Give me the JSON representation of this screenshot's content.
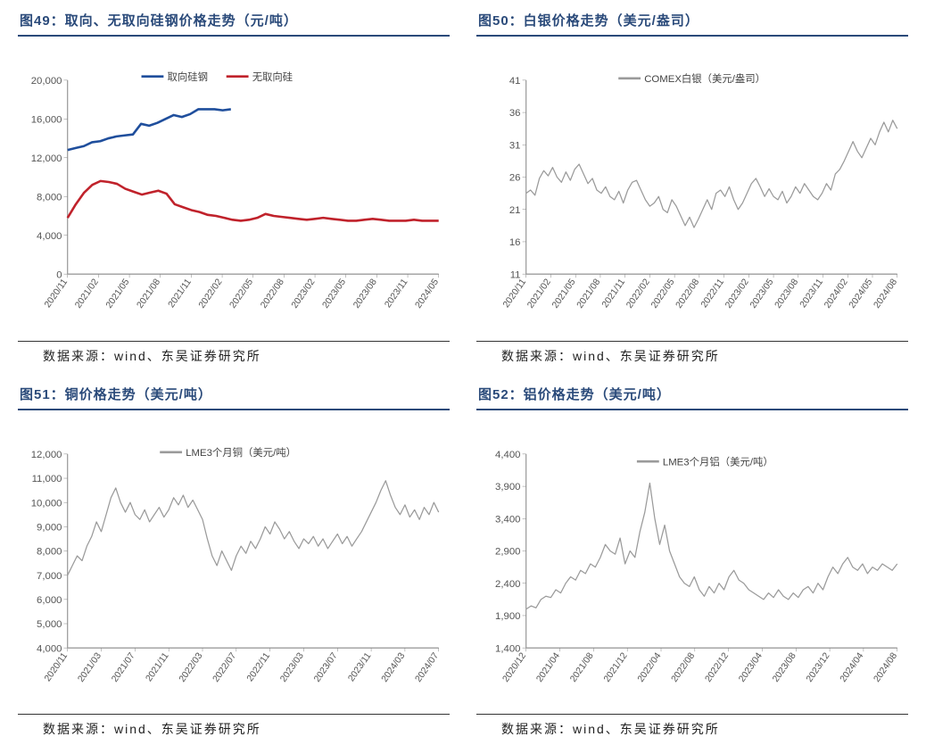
{
  "colors": {
    "title": "#2a4a7a",
    "series_blue": "#1f4e9c",
    "series_red": "#c0222b",
    "series_gray": "#9a9a9a",
    "axis": "#888888",
    "text": "#555555",
    "bg": "#ffffff"
  },
  "source_label": "数据来源：wind、东吴证券研究所",
  "chart49": {
    "title": "图49：取向、无取向硅钢价格走势（元/吨）",
    "type": "line",
    "ylim": [
      0,
      20000
    ],
    "ytick_step": 4000,
    "yticks": [
      "0",
      "4,000",
      "8,000",
      "12,000",
      "16,000",
      "20,000"
    ],
    "xlabels": [
      "2020/11",
      "2021/02",
      "2021/05",
      "2021/08",
      "2021/11",
      "2022/02",
      "2022/05",
      "2022/08",
      "2023/02",
      "2023/05",
      "2023/08",
      "2023/11",
      "2024/05"
    ],
    "legend": [
      "取向硅钢",
      "无取向硅"
    ],
    "series_a_color": "#1f4e9c",
    "series_b_color": "#c0222b",
    "series_a_width": 2.5,
    "series_b_width": 2.5,
    "series_a": [
      12800,
      13000,
      13200,
      13600,
      13700,
      14000,
      14200,
      14300,
      14400,
      15500,
      15300,
      15600,
      16000,
      16400,
      16200,
      16500,
      17000,
      17000,
      17000,
      16900,
      17000
    ],
    "series_b": [
      5800,
      7200,
      8400,
      9200,
      9600,
      9500,
      9300,
      8800,
      8500,
      8200,
      8400,
      8600,
      8300,
      7200,
      6900,
      6600,
      6400,
      6100,
      6000,
      5800,
      5600,
      5500,
      5600,
      5800,
      6200,
      6000,
      5900,
      5800,
      5700,
      5600,
      5700,
      5800,
      5700,
      5600,
      5500,
      5500,
      5600,
      5700,
      5600,
      5500,
      5500,
      5500,
      5600,
      5500,
      5500,
      5500
    ],
    "series_a_xspan": [
      0,
      0.44
    ],
    "series_b_xspan": [
      0,
      1.0
    ]
  },
  "chart50": {
    "title": "图50：白银价格走势（美元/盎司）",
    "type": "line",
    "ylim": [
      11,
      41
    ],
    "ytick_step": 5,
    "yticks": [
      "11",
      "16",
      "21",
      "26",
      "31",
      "36",
      "41"
    ],
    "xlabels": [
      "2020/11",
      "2021/02",
      "2021/05",
      "2021/08",
      "2021/11",
      "2022/02",
      "2022/05",
      "2022/08",
      "2022/11",
      "2023/02",
      "2023/05",
      "2023/08",
      "2023/11",
      "2024/02",
      "2024/05",
      "2024/08"
    ],
    "legend": [
      "COMEX白银（美元/盎司）"
    ],
    "series_color": "#9a9a9a",
    "series_width": 1.2,
    "series": [
      23.5,
      24.0,
      23.2,
      25.8,
      27.0,
      26.2,
      27.5,
      26.0,
      25.2,
      26.8,
      25.5,
      27.2,
      28.0,
      26.5,
      25.0,
      25.8,
      24.0,
      23.5,
      24.5,
      23.0,
      22.5,
      23.8,
      22.0,
      24.0,
      25.2,
      25.5,
      24.0,
      22.5,
      21.5,
      22.0,
      23.0,
      21.0,
      20.5,
      22.5,
      21.5,
      20.0,
      18.5,
      19.8,
      18.2,
      19.5,
      21.0,
      22.5,
      21.0,
      23.5,
      24.0,
      23.0,
      24.5,
      22.5,
      21.0,
      22.0,
      23.5,
      25.0,
      25.8,
      24.5,
      23.0,
      24.2,
      23.0,
      22.5,
      23.8,
      22.0,
      23.0,
      24.5,
      23.5,
      25.0,
      24.0,
      23.0,
      22.5,
      23.5,
      25.0,
      24.0,
      26.5,
      27.2,
      28.5,
      30.0,
      31.5,
      30.0,
      29.0,
      30.5,
      32.0,
      31.0,
      33.0,
      34.5,
      33.0,
      34.8,
      33.5
    ]
  },
  "chart51": {
    "title": "图51：铜价格走势（美元/吨）",
    "type": "line",
    "ylim": [
      4000,
      12000
    ],
    "ytick_step": 1000,
    "yticks": [
      "4,000",
      "5,000",
      "6,000",
      "7,000",
      "8,000",
      "9,000",
      "10,000",
      "11,000",
      "12,000"
    ],
    "xlabels": [
      "2020/11",
      "2021/03",
      "2021/07",
      "2021/11",
      "2022/03",
      "2022/07",
      "2022/11",
      "2023/03",
      "2023/07",
      "2023/11",
      "2024/03",
      "2024/07"
    ],
    "legend": [
      "LME3个月铜（美元/吨）"
    ],
    "series_color": "#9a9a9a",
    "series_width": 1.2,
    "series": [
      7000,
      7400,
      7800,
      7600,
      8200,
      8600,
      9200,
      8800,
      9500,
      10200,
      10600,
      10000,
      9600,
      10000,
      9500,
      9300,
      9700,
      9200,
      9500,
      9800,
      9400,
      9700,
      10200,
      9900,
      10300,
      9800,
      10100,
      9700,
      9300,
      8500,
      7800,
      7400,
      8000,
      7600,
      7200,
      7800,
      8200,
      7900,
      8400,
      8100,
      8500,
      9000,
      8700,
      9200,
      8900,
      8500,
      8800,
      8400,
      8100,
      8500,
      8300,
      8600,
      8200,
      8500,
      8100,
      8400,
      8700,
      8300,
      8600,
      8200,
      8500,
      8800,
      9200,
      9600,
      10000,
      10500,
      10900,
      10300,
      9800,
      9500,
      9900,
      9400,
      9700,
      9300,
      9800,
      9500,
      10000,
      9600
    ]
  },
  "chart52": {
    "title": "图52：铝价格走势（美元/吨）",
    "type": "line",
    "ylim": [
      1400,
      4400
    ],
    "ytick_step": 500,
    "yticks": [
      "1,400",
      "1,900",
      "2,400",
      "2,900",
      "3,400",
      "3,900",
      "4,400"
    ],
    "xlabels": [
      "2020/12",
      "2021/04",
      "2021/08",
      "2021/12",
      "2022/04",
      "2022/08",
      "2022/12",
      "2023/04",
      "2023/08",
      "2023/12",
      "2024/04",
      "2024/08"
    ],
    "legend": [
      "LME3个月铝（美元/吨）"
    ],
    "series_color": "#9a9a9a",
    "series_width": 1.2,
    "series": [
      2000,
      2050,
      2020,
      2150,
      2200,
      2180,
      2300,
      2250,
      2400,
      2500,
      2450,
      2600,
      2550,
      2700,
      2650,
      2800,
      3000,
      2900,
      2850,
      3100,
      2700,
      2900,
      2800,
      3200,
      3500,
      3950,
      3400,
      3000,
      3300,
      2900,
      2700,
      2500,
      2400,
      2350,
      2500,
      2300,
      2200,
      2350,
      2250,
      2400,
      2300,
      2500,
      2600,
      2450,
      2400,
      2300,
      2250,
      2200,
      2150,
      2250,
      2180,
      2300,
      2200,
      2150,
      2250,
      2180,
      2300,
      2350,
      2250,
      2400,
      2300,
      2500,
      2650,
      2550,
      2700,
      2800,
      2650,
      2600,
      2700,
      2550,
      2650,
      2600,
      2700,
      2650,
      2600,
      2700
    ]
  }
}
